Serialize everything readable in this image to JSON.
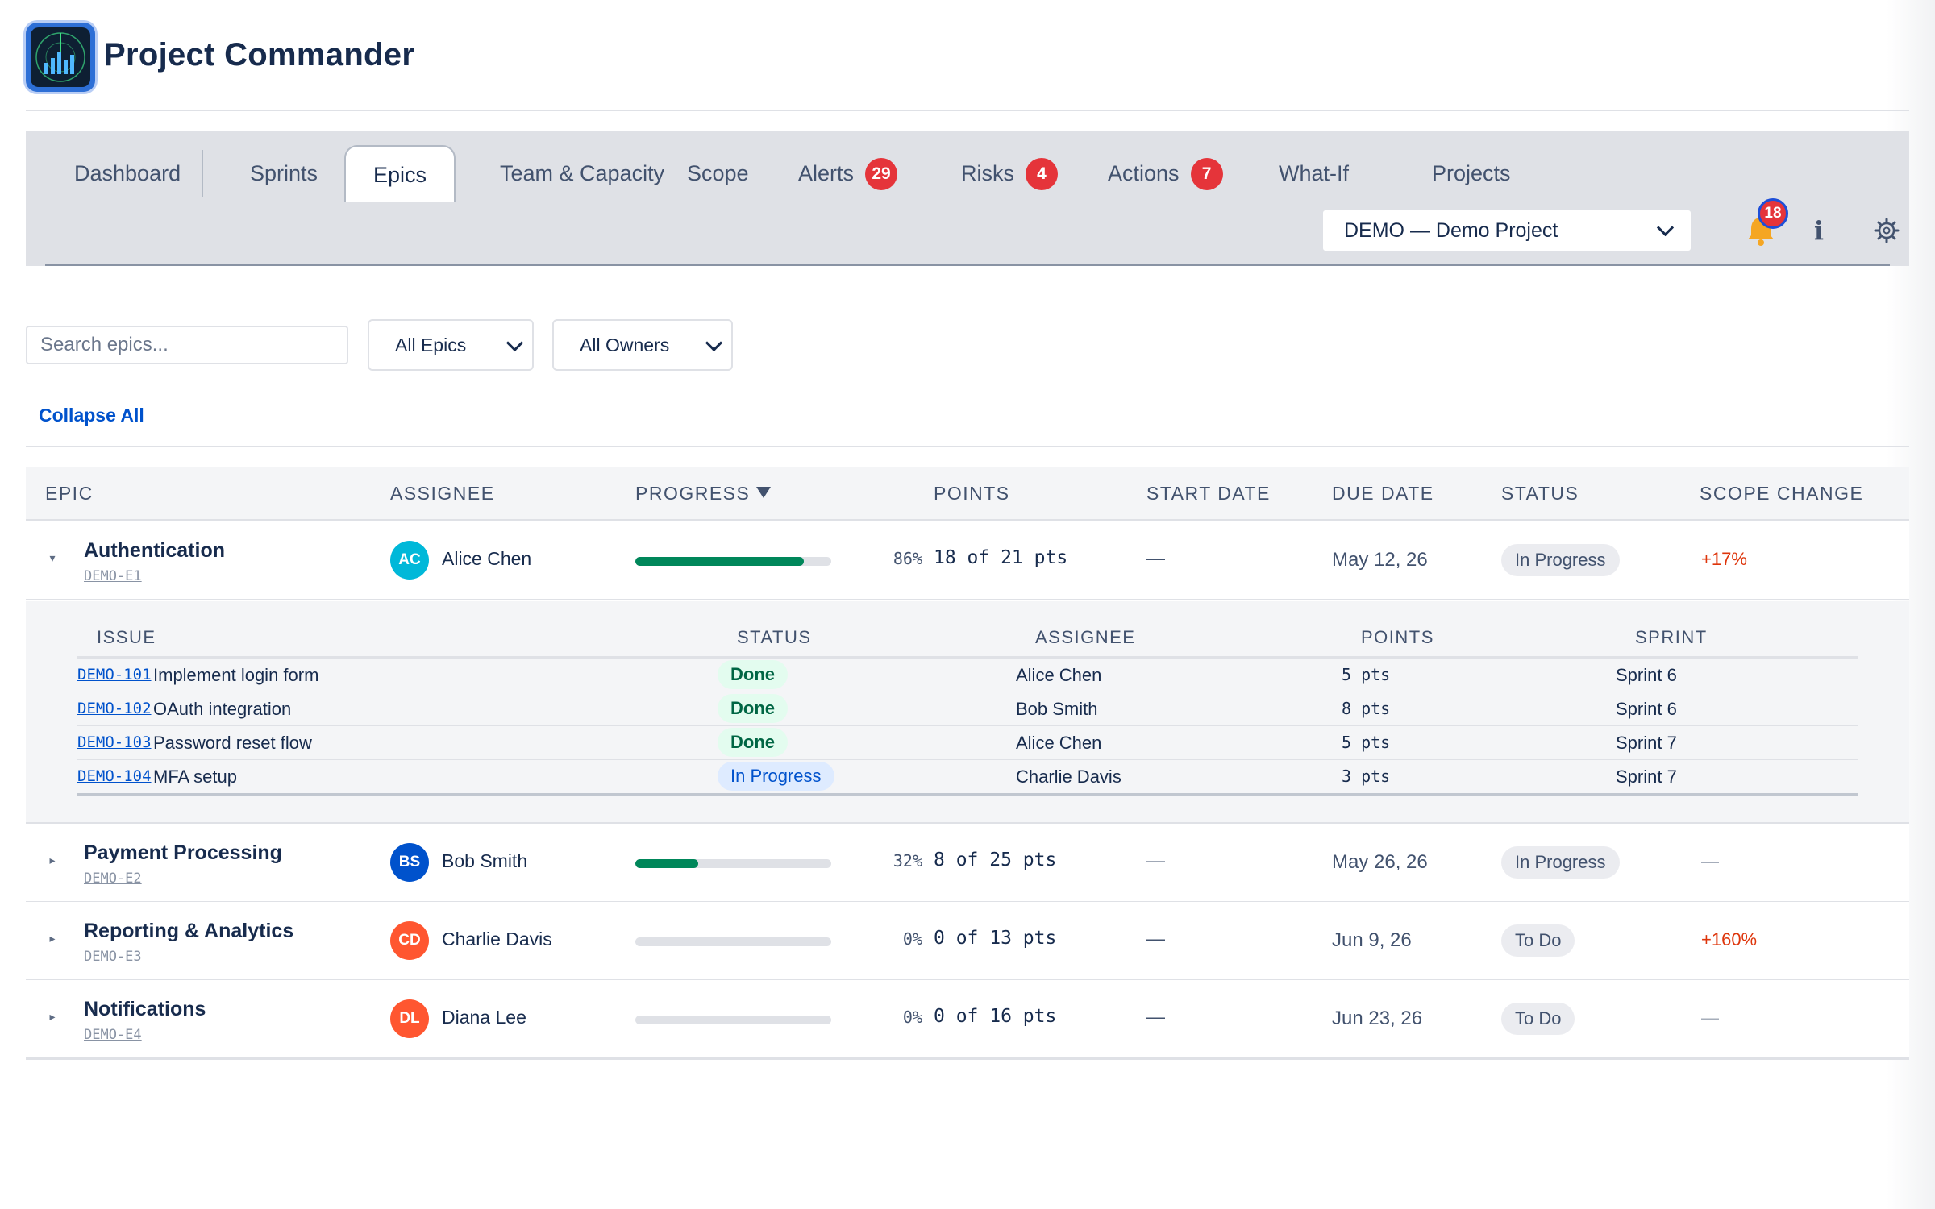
{
  "app": {
    "title": "Project Commander"
  },
  "nav": {
    "tabs": [
      {
        "label": "Dashboard"
      },
      {
        "label": "Sprints"
      },
      {
        "label": "Epics"
      },
      {
        "label": "Team & Capacity"
      },
      {
        "label": "Scope"
      },
      {
        "label": "Alerts",
        "badge": "29"
      },
      {
        "label": "Risks",
        "badge": "4"
      },
      {
        "label": "Actions",
        "badge": "7"
      },
      {
        "label": "What-If"
      },
      {
        "label": "Projects"
      }
    ],
    "active_tab": "Epics",
    "project_select": "DEMO — Demo Project",
    "notifications_count": "18",
    "info_glyph": "i",
    "icons": [
      "bell-icon",
      "info-icon",
      "gear-icon"
    ]
  },
  "filters": {
    "search_placeholder": "Search epics...",
    "epic_filter": "All Epics",
    "owner_filter": "All Owners",
    "collapse_label": "Collapse All"
  },
  "table": {
    "headers": [
      "EPIC",
      "ASSIGNEE",
      "PROGRESS",
      "POINTS",
      "START DATE",
      "DUE DATE",
      "STATUS",
      "SCOPE CHANGE"
    ],
    "sorted_by": "PROGRESS",
    "rows": [
      {
        "name": "Authentication",
        "key": "DEMO-E1",
        "initials": "AC",
        "assignee": "Alice Chen",
        "avatar_color": "#00b8d9",
        "progress": 0.86,
        "progress_label": "86%",
        "points": "18 of 21 pts",
        "start": "—",
        "due": "May 12, 26",
        "status": "In Progress",
        "scope_change": "+17%",
        "expanded": true,
        "toggle": "▾"
      },
      {
        "name": "Payment Processing",
        "key": "DEMO-E2",
        "initials": "BS",
        "assignee": "Bob Smith",
        "avatar_color": "#0052cc",
        "progress": 0.32,
        "progress_label": "32%",
        "points": "8 of 25 pts",
        "start": "—",
        "due": "May 26, 26",
        "status": "In Progress",
        "scope_change": "—",
        "expanded": false,
        "toggle": "▸"
      },
      {
        "name": "Reporting & Analytics",
        "key": "DEMO-E3",
        "initials": "CD",
        "assignee": "Charlie Davis",
        "avatar_color": "#ff5630",
        "progress": 0,
        "progress_label": "0%",
        "points": "0 of 13 pts",
        "start": "—",
        "due": "Jun 9, 26",
        "status": "To Do",
        "scope_change": "+160%",
        "expanded": false,
        "toggle": "▸"
      },
      {
        "name": "Notifications",
        "key": "DEMO-E4",
        "initials": "DL",
        "assignee": "Diana Lee",
        "avatar_color": "#ff5630",
        "progress": 0,
        "progress_label": "0%",
        "points": "0 of 16 pts",
        "start": "—",
        "due": "Jun 23, 26",
        "status": "To Do",
        "scope_change": "—",
        "expanded": false,
        "toggle": "▸"
      }
    ]
  },
  "issues": {
    "headers": [
      "ISSUE",
      "STATUS",
      "ASSIGNEE",
      "POINTS",
      "SPRINT"
    ],
    "rows": [
      {
        "key": "DEMO-101",
        "title": "Implement login form",
        "status": "Done",
        "assignee": "Alice Chen",
        "points": "5 pts",
        "sprint": "Sprint 6"
      },
      {
        "key": "DEMO-102",
        "title": "OAuth integration",
        "status": "Done",
        "assignee": "Bob Smith",
        "points": "8 pts",
        "sprint": "Sprint 6"
      },
      {
        "key": "DEMO-103",
        "title": "Password reset flow",
        "status": "Done",
        "assignee": "Alice Chen",
        "points": "5 pts",
        "sprint": "Sprint 7"
      },
      {
        "key": "DEMO-104",
        "title": "MFA setup",
        "status": "In Progress",
        "assignee": "Charlie Davis",
        "points": "3 pts",
        "sprint": "Sprint 7"
      }
    ]
  },
  "colors": {
    "brand": "#172b4d",
    "link": "#0052cc",
    "progress_fill": "#00875a",
    "badge": "#e5343a",
    "scope_increase": "#de350b",
    "done_bg": "#e3fcef",
    "done_text": "#006644",
    "inprogress_bg": "#deebff",
    "inprogress_text": "#0052cc"
  }
}
